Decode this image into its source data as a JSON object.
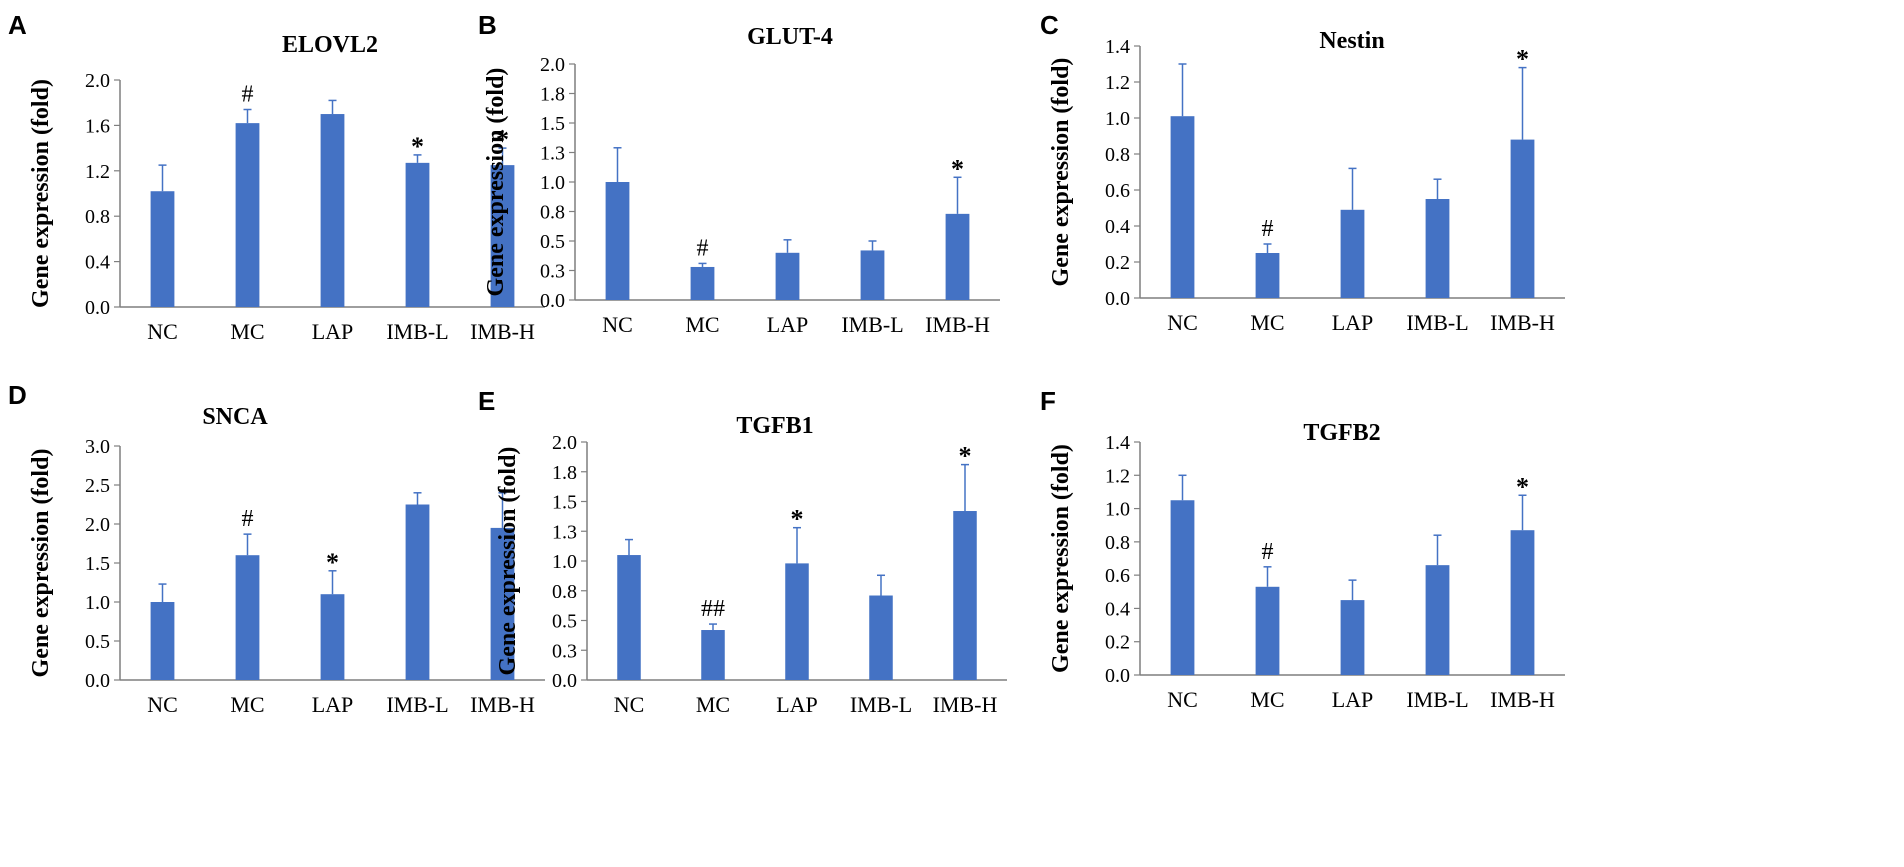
{
  "colors": {
    "bar": "#4472c4",
    "axis": "#7f7f7f",
    "text": "#000000"
  },
  "chart_data": [
    {
      "panel": "A",
      "type": "bar",
      "title": "ELOVL2",
      "xlabel": "",
      "ylabel": "Gene expression (fold)",
      "categories": [
        "NC",
        "MC",
        "LAP",
        "IMB-L",
        "IMB-H"
      ],
      "values": [
        1.02,
        1.62,
        1.7,
        1.27,
        1.25
      ],
      "errors": [
        0.23,
        0.12,
        0.12,
        0.07,
        0.15
      ],
      "markers": [
        "",
        "#",
        "",
        "*",
        "*"
      ],
      "ylim": [
        0,
        2.0
      ],
      "yticks": [
        "0.0",
        "0.4",
        "0.8",
        "1.2",
        "1.6",
        "2.0"
      ]
    },
    {
      "panel": "B",
      "type": "bar",
      "title": "GLUT-4",
      "xlabel": "",
      "ylabel": "Gene expression (fold)",
      "categories": [
        "NC",
        "MC",
        "LAP",
        "IMB-L",
        "IMB-H"
      ],
      "values": [
        1.0,
        0.28,
        0.4,
        0.42,
        0.73
      ],
      "errors": [
        0.29,
        0.03,
        0.11,
        0.08,
        0.31
      ],
      "markers": [
        "",
        "#",
        "",
        "",
        "*"
      ],
      "ylim": [
        0,
        2.0
      ],
      "yticks": [
        "0.0",
        "0.3",
        "0.5",
        "0.8",
        "1.0",
        "1.3",
        "1.5",
        "1.8",
        "2.0"
      ]
    },
    {
      "panel": "C",
      "type": "bar",
      "title": "Nestin",
      "xlabel": "",
      "ylabel": "Gene expression (fold)",
      "categories": [
        "NC",
        "MC",
        "LAP",
        "IMB-L",
        "IMB-H"
      ],
      "values": [
        1.01,
        0.25,
        0.49,
        0.55,
        0.88
      ],
      "errors": [
        0.29,
        0.05,
        0.23,
        0.11,
        0.4
      ],
      "markers": [
        "",
        "#",
        "",
        "",
        "*"
      ],
      "ylim": [
        0,
        1.4
      ],
      "yticks": [
        "0.0",
        "0.2",
        "0.4",
        "0.6",
        "0.8",
        "1.0",
        "1.2",
        "1.4"
      ]
    },
    {
      "panel": "D",
      "type": "bar",
      "title": "SNCA",
      "xlabel": "",
      "ylabel": "Gene expression (fold)",
      "categories": [
        "NC",
        "MC",
        "LAP",
        "IMB-L",
        "IMB-H"
      ],
      "values": [
        1.0,
        1.6,
        1.1,
        2.25,
        1.95
      ],
      "errors": [
        0.23,
        0.27,
        0.3,
        0.15,
        0.45
      ],
      "markers": [
        "",
        "#",
        "*",
        "",
        ""
      ],
      "ylim": [
        0,
        3.0
      ],
      "yticks": [
        "0.0",
        "0.5",
        "1.0",
        "1.5",
        "2.0",
        "2.5",
        "3.0"
      ]
    },
    {
      "panel": "E",
      "type": "bar",
      "title": "TGFB1",
      "xlabel": "",
      "ylabel": "Gene expression (fold)",
      "categories": [
        "NC",
        "MC",
        "LAP",
        "IMB-L",
        "IMB-H"
      ],
      "values": [
        1.05,
        0.42,
        0.98,
        0.71,
        1.42
      ],
      "errors": [
        0.13,
        0.05,
        0.3,
        0.17,
        0.39
      ],
      "markers": [
        "",
        "##",
        "*",
        "",
        "*"
      ],
      "ylim": [
        0,
        2.0
      ],
      "yticks": [
        "0.0",
        "0.3",
        "0.5",
        "0.8",
        "1.0",
        "1.3",
        "1.5",
        "1.8",
        "2.0"
      ]
    },
    {
      "panel": "F",
      "type": "bar",
      "title": "TGFB2",
      "xlabel": "",
      "ylabel": "Gene expression (fold)",
      "categories": [
        "NC",
        "MC",
        "LAP",
        "IMB-L",
        "IMB-H"
      ],
      "values": [
        1.05,
        0.53,
        0.45,
        0.66,
        0.87
      ],
      "errors": [
        0.15,
        0.12,
        0.12,
        0.18,
        0.21
      ],
      "markers": [
        "",
        "#",
        "",
        "",
        "*"
      ],
      "ylim": [
        0,
        1.4
      ],
      "yticks": [
        "0.0",
        "0.2",
        "0.4",
        "0.6",
        "0.8",
        "1.0",
        "1.2",
        "1.4"
      ]
    }
  ]
}
